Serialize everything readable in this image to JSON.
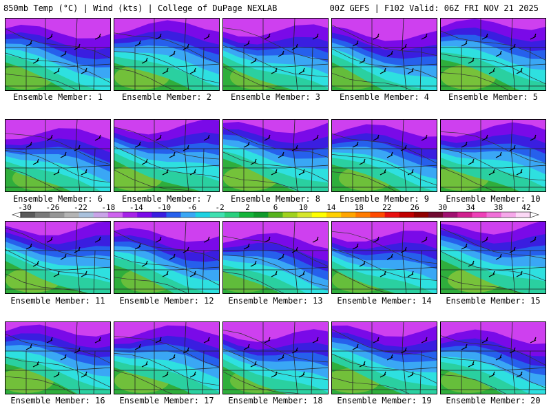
{
  "header": {
    "left": "850mb Temp (°C) | Wind (kts) | College of DuPage NEXLAB",
    "right": "00Z GEFS | F102 Valid: 06Z FRI NOV 21 2025"
  },
  "member_prefix": "Ensemble Member:",
  "members": [
    "1",
    "2",
    "3",
    "4",
    "5",
    "6",
    "7",
    "8",
    "9",
    "10",
    "11",
    "12",
    "13",
    "14",
    "15",
    "16",
    "17",
    "18",
    "19",
    "20"
  ],
  "colorbar": {
    "labels": [
      "-30",
      "-26",
      "-22",
      "-18",
      "-14",
      "-10",
      "-6",
      "-2",
      "2",
      "6",
      "10",
      "14",
      "18",
      "22",
      "26",
      "30",
      "34",
      "38",
      "42"
    ],
    "colors": [
      "#5a5a5a",
      "#7a7a7a",
      "#969696",
      "#b4b4b4",
      "#a9c1dc",
      "#c9a3e8",
      "#ce63ef",
      "#a622e8",
      "#7a0ae8",
      "#3a1ee0",
      "#2660ec",
      "#3aa7f5",
      "#1ed2e2",
      "#40e0b0",
      "#2ad07e",
      "#14b43a",
      "#0f9a2a",
      "#56b21e",
      "#a0d21e",
      "#d6e62a",
      "#ffff00",
      "#ffd000",
      "#ffa500",
      "#ff7a00",
      "#ff4a00",
      "#e81010",
      "#c00000",
      "#900000",
      "#700a30",
      "#a01070",
      "#d0208e",
      "#ee40b8",
      "#f070d8",
      "#f6a8ea",
      "#fcd8f6"
    ]
  }
}
